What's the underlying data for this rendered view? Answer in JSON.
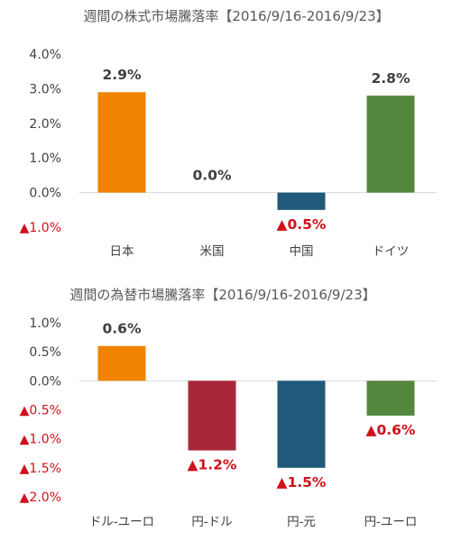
{
  "chart_data": [
    {
      "type": "bar",
      "title": "週間の株式市場騰落率【2016/9/16-2016/9/23】",
      "categories": [
        "日本",
        "米国",
        "中国",
        "ドイツ"
      ],
      "values": [
        2.9,
        0.0,
        -0.5,
        2.8
      ],
      "value_labels": [
        "2.9%",
        "0.0%",
        "▲0.5%",
        "2.8%"
      ],
      "colors": [
        "#f08400",
        "#808080",
        "#1f5a7a",
        "#53873e"
      ],
      "ylim": [
        -1.0,
        4.0
      ],
      "yticks": [
        4.0,
        3.0,
        2.0,
        1.0,
        0.0,
        -1.0
      ],
      "ytick_labels": [
        "4.0%",
        "3.0%",
        "2.0%",
        "1.0%",
        "0.0%",
        "▲1.0%"
      ],
      "grid": false,
      "xlabel": "",
      "ylabel": ""
    },
    {
      "type": "bar",
      "title": "週間の為替市場騰落率【2016/9/16-2016/9/23】",
      "categories": [
        "ドル-ユーロ",
        "円-ドル",
        "円-元",
        "円-ユーロ"
      ],
      "values": [
        0.6,
        -1.2,
        -1.5,
        -0.6
      ],
      "value_labels": [
        "0.6%",
        "▲1.2%",
        "▲1.5%",
        "▲0.6%"
      ],
      "colors": [
        "#f08400",
        "#a8283a",
        "#1f5a7a",
        "#53873e"
      ],
      "ylim": [
        -2.0,
        1.0
      ],
      "yticks": [
        1.0,
        0.5,
        0.0,
        -0.5,
        -1.0,
        -1.5,
        -2.0
      ],
      "ytick_labels": [
        "1.0%",
        "0.5%",
        "0.0%",
        "▲0.5%",
        "▲1.0%",
        "▲1.5%",
        "▲2.0%"
      ],
      "grid": false,
      "xlabel": "",
      "ylabel": ""
    }
  ],
  "style": {
    "text_color": "#404040",
    "negative_color": "#d0101a",
    "axis_color": "#d9d9d9"
  }
}
